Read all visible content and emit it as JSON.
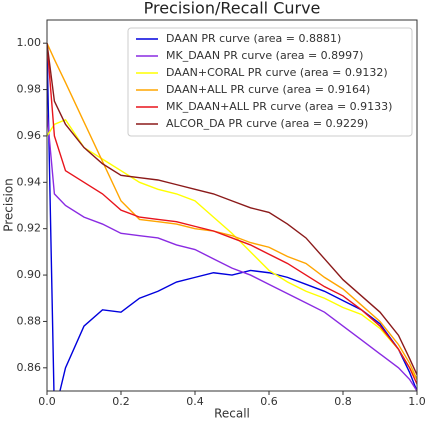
{
  "chart_data": {
    "type": "line",
    "title": "Precision/Recall Curve",
    "x_label": "Recall",
    "y_label": "Precision",
    "x": [
      0,
      0.02,
      0.05,
      0.1,
      0.15,
      0.2,
      0.25,
      0.3,
      0.35,
      0.4,
      0.45,
      0.5,
      0.55,
      0.6,
      0.65,
      0.7,
      0.75,
      0.8,
      0.85,
      0.9,
      0.95,
      0.98,
      1.0
    ],
    "series": [
      {
        "name": "DAAN PR curve (area = 0.8881)",
        "color": "#0000dd",
        "values": [
          1.0,
          0.84,
          0.86,
          0.878,
          0.885,
          0.884,
          0.89,
          0.893,
          0.897,
          0.899,
          0.901,
          0.9,
          0.902,
          0.901,
          0.899,
          0.896,
          0.893,
          0.889,
          0.885,
          0.879,
          0.868,
          0.858,
          0.85
        ]
      },
      {
        "name": "MK_DAAN PR curve (area = 0.8997)",
        "color": "#8a2be2",
        "values": [
          0.97,
          0.935,
          0.93,
          0.925,
          0.922,
          0.918,
          0.917,
          0.916,
          0.913,
          0.911,
          0.907,
          0.903,
          0.9,
          0.896,
          0.892,
          0.888,
          0.884,
          0.878,
          0.872,
          0.866,
          0.86,
          0.855,
          0.85
        ]
      },
      {
        "name": "DAAN+CORAL PR curve (area = 0.9132)",
        "color": "#ffff00",
        "values": [
          0.96,
          0.965,
          0.967,
          0.955,
          0.95,
          0.945,
          0.94,
          0.937,
          0.935,
          0.932,
          0.925,
          0.918,
          0.91,
          0.902,
          0.897,
          0.893,
          0.89,
          0.886,
          0.883,
          0.877,
          0.868,
          0.86,
          0.855
        ]
      },
      {
        "name": "DAAN+ALL PR curve (area = 0.9164)",
        "color": "#ffa500",
        "values": [
          1.0,
          0.993,
          0.983,
          0.966,
          0.949,
          0.932,
          0.924,
          0.923,
          0.922,
          0.92,
          0.919,
          0.917,
          0.914,
          0.912,
          0.908,
          0.905,
          0.899,
          0.894,
          0.887,
          0.88,
          0.87,
          0.862,
          0.855
        ]
      },
      {
        "name": "MK_DAAN+ALL PR curve (area = 0.9133)",
        "color": "#e8141c",
        "values": [
          1.0,
          0.96,
          0.945,
          0.94,
          0.935,
          0.928,
          0.925,
          0.924,
          0.923,
          0.921,
          0.919,
          0.916,
          0.913,
          0.909,
          0.905,
          0.9,
          0.895,
          0.891,
          0.885,
          0.878,
          0.868,
          0.86,
          0.853
        ]
      },
      {
        "name": "ALCOR_DA PR curve (area = 0.9229)",
        "color": "#8b1a1a",
        "values": [
          1.0,
          0.975,
          0.965,
          0.955,
          0.948,
          0.943,
          0.942,
          0.941,
          0.939,
          0.937,
          0.935,
          0.932,
          0.929,
          0.927,
          0.922,
          0.916,
          0.907,
          0.898,
          0.891,
          0.884,
          0.874,
          0.864,
          0.857
        ]
      }
    ],
    "xlim": [
      0,
      1
    ],
    "ylim": [
      0.85,
      1.01
    ],
    "xticks": [
      {
        "value": 0,
        "label": "0.0"
      },
      0.2,
      0.4,
      0.6,
      0.8,
      {
        "value": 1,
        "label": "1.0"
      }
    ],
    "yticks": [
      0.86,
      0.88,
      {
        "value": 0.9,
        "label": "0.90"
      },
      0.92,
      0.94,
      0.96,
      0.98,
      {
        "value": 1,
        "label": "1.00"
      }
    ],
    "legend": "upper right"
  }
}
